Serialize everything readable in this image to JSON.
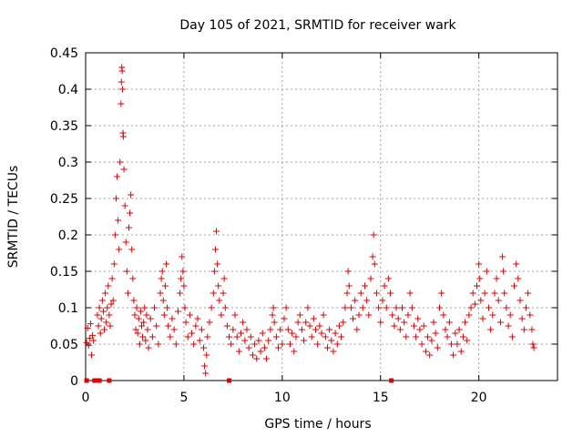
{
  "chart_data": {
    "type": "scatter",
    "title": "Day 105 of 2021, SRMTID for receiver wark",
    "xlabel": "GPS time / hours",
    "ylabel": "SRMTID / TECUs",
    "xlim": [
      0,
      24
    ],
    "ylim": [
      0,
      0.45
    ],
    "xticks": [
      0,
      5,
      10,
      15,
      20
    ],
    "yticks": [
      0,
      0.05,
      0.1,
      0.15,
      0.2,
      0.25,
      0.3,
      0.35,
      0.4,
      0.45
    ],
    "xtick_labels": [
      "0",
      "5",
      "10",
      "15",
      "20"
    ],
    "ytick_labels": [
      "0",
      "0.05",
      "0.1",
      "0.15",
      "0.2",
      "0.25",
      "0.3",
      "0.35",
      "0.4",
      "0.45"
    ],
    "grid": true,
    "marker": "+",
    "color": "#e00000",
    "series": [
      {
        "points": [
          [
            0.05,
            0.052
          ],
          [
            0.1,
            0.072
          ],
          [
            0.15,
            0.048
          ],
          [
            0.2,
            0.058
          ],
          [
            0.25,
            0.078
          ],
          [
            0.3,
            0.035
          ],
          [
            0.35,
            0.062
          ],
          [
            0.4,
            0.055
          ],
          [
            0.6,
            0.09
          ],
          [
            0.65,
            0.075
          ],
          [
            0.7,
            0.1
          ],
          [
            0.75,
            0.065
          ],
          [
            0.8,
            0.085
          ],
          [
            0.85,
            0.11
          ],
          [
            0.9,
            0.095
          ],
          [
            0.95,
            0.07
          ],
          [
            1.0,
            0.12
          ],
          [
            1.05,
            0.08
          ],
          [
            1.1,
            0.1
          ],
          [
            1.15,
            0.13
          ],
          [
            1.2,
            0.09
          ],
          [
            1.25,
            0.075
          ],
          [
            1.3,
            0.105
          ],
          [
            1.35,
            0.14
          ],
          [
            1.4,
            0.11
          ],
          [
            1.45,
            0.16
          ],
          [
            1.5,
            0.2
          ],
          [
            1.55,
            0.25
          ],
          [
            1.6,
            0.28
          ],
          [
            1.65,
            0.22
          ],
          [
            1.7,
            0.18
          ],
          [
            1.75,
            0.3
          ],
          [
            1.8,
            0.38
          ],
          [
            1.82,
            0.41
          ],
          [
            1.84,
            0.43
          ],
          [
            1.86,
            0.425
          ],
          [
            1.88,
            0.4
          ],
          [
            1.9,
            0.34
          ],
          [
            1.92,
            0.335
          ],
          [
            1.95,
            0.29
          ],
          [
            2.0,
            0.24
          ],
          [
            2.05,
            0.19
          ],
          [
            2.1,
            0.15
          ],
          [
            2.15,
            0.12
          ],
          [
            2.2,
            0.21
          ],
          [
            2.25,
            0.23
          ],
          [
            2.3,
            0.255
          ],
          [
            2.35,
            0.18
          ],
          [
            2.4,
            0.14
          ],
          [
            2.45,
            0.11
          ],
          [
            2.5,
            0.09
          ],
          [
            2.55,
            0.07
          ],
          [
            2.6,
            0.1
          ],
          [
            2.65,
            0.065
          ],
          [
            2.7,
            0.085
          ],
          [
            2.75,
            0.05
          ],
          [
            2.8,
            0.095
          ],
          [
            2.85,
            0.075
          ],
          [
            2.9,
            0.06
          ],
          [
            2.95,
            0.08
          ],
          [
            3.0,
            0.1
          ],
          [
            3.05,
            0.055
          ],
          [
            3.1,
            0.09
          ],
          [
            3.15,
            0.07
          ],
          [
            3.2,
            0.045
          ],
          [
            3.3,
            0.085
          ],
          [
            3.4,
            0.06
          ],
          [
            3.5,
            0.1
          ],
          [
            3.6,
            0.075
          ],
          [
            3.7,
            0.05
          ],
          [
            3.8,
            0.12
          ],
          [
            3.85,
            0.14
          ],
          [
            3.9,
            0.15
          ],
          [
            3.95,
            0.11
          ],
          [
            4.0,
            0.09
          ],
          [
            4.05,
            0.13
          ],
          [
            4.1,
            0.16
          ],
          [
            4.15,
            0.1
          ],
          [
            4.2,
            0.075
          ],
          [
            4.3,
            0.06
          ],
          [
            4.4,
            0.085
          ],
          [
            4.5,
            0.07
          ],
          [
            4.6,
            0.05
          ],
          [
            4.7,
            0.095
          ],
          [
            4.8,
            0.12
          ],
          [
            4.85,
            0.14
          ],
          [
            4.9,
            0.17
          ],
          [
            4.95,
            0.15
          ],
          [
            5.0,
            0.13
          ],
          [
            5.05,
            0.1
          ],
          [
            5.1,
            0.08
          ],
          [
            5.2,
            0.06
          ],
          [
            5.3,
            0.09
          ],
          [
            5.4,
            0.065
          ],
          [
            5.5,
            0.05
          ],
          [
            5.6,
            0.075
          ],
          [
            5.7,
            0.085
          ],
          [
            5.8,
            0.055
          ],
          [
            5.9,
            0.07
          ],
          [
            6.0,
            0.045
          ],
          [
            6.05,
            0.02
          ],
          [
            6.1,
            0.01
          ],
          [
            6.15,
            0.035
          ],
          [
            6.2,
            0.06
          ],
          [
            6.3,
            0.08
          ],
          [
            6.4,
            0.1
          ],
          [
            6.5,
            0.12
          ],
          [
            6.55,
            0.15
          ],
          [
            6.6,
            0.18
          ],
          [
            6.65,
            0.205
          ],
          [
            6.7,
            0.16
          ],
          [
            6.75,
            0.13
          ],
          [
            6.8,
            0.11
          ],
          [
            6.9,
            0.09
          ],
          [
            7.0,
            0.12
          ],
          [
            7.05,
            0.14
          ],
          [
            7.1,
            0.1
          ],
          [
            7.2,
            0.075
          ],
          [
            7.3,
            0.06
          ],
          [
            7.4,
            0.05
          ],
          [
            7.5,
            0.07
          ],
          [
            7.6,
            0.09
          ],
          [
            7.7,
            0.06
          ],
          [
            7.8,
            0.04
          ],
          [
            7.9,
            0.065
          ],
          [
            8.0,
            0.08
          ],
          [
            8.1,
            0.055
          ],
          [
            8.2,
            0.07
          ],
          [
            8.3,
            0.045
          ],
          [
            8.4,
            0.06
          ],
          [
            8.5,
            0.035
          ],
          [
            8.6,
            0.05
          ],
          [
            8.7,
            0.03
          ],
          [
            8.8,
            0.055
          ],
          [
            8.9,
            0.04
          ],
          [
            9.0,
            0.065
          ],
          [
            9.1,
            0.045
          ],
          [
            9.2,
            0.03
          ],
          [
            9.3,
            0.055
          ],
          [
            9.4,
            0.07
          ],
          [
            9.5,
            0.09
          ],
          [
            9.55,
            0.1
          ],
          [
            9.6,
            0.08
          ],
          [
            9.7,
            0.06
          ],
          [
            9.8,
            0.045
          ],
          [
            9.9,
            0.07
          ],
          [
            10.0,
            0.05
          ],
          [
            10.1,
            0.085
          ],
          [
            10.2,
            0.1
          ],
          [
            10.3,
            0.07
          ],
          [
            10.4,
            0.05
          ],
          [
            10.5,
            0.065
          ],
          [
            10.6,
            0.04
          ],
          [
            10.7,
            0.06
          ],
          [
            10.8,
            0.08
          ],
          [
            10.9,
            0.09
          ],
          [
            11.0,
            0.07
          ],
          [
            11.1,
            0.055
          ],
          [
            11.2,
            0.08
          ],
          [
            11.3,
            0.1
          ],
          [
            11.4,
            0.075
          ],
          [
            11.5,
            0.06
          ],
          [
            11.6,
            0.085
          ],
          [
            11.7,
            0.07
          ],
          [
            11.8,
            0.05
          ],
          [
            11.9,
            0.075
          ],
          [
            12.0,
            0.065
          ],
          [
            12.1,
            0.09
          ],
          [
            12.2,
            0.06
          ],
          [
            12.3,
            0.045
          ],
          [
            12.4,
            0.07
          ],
          [
            12.5,
            0.055
          ],
          [
            12.6,
            0.04
          ],
          [
            12.7,
            0.065
          ],
          [
            12.8,
            0.05
          ],
          [
            12.9,
            0.075
          ],
          [
            13.0,
            0.06
          ],
          [
            13.1,
            0.08
          ],
          [
            13.2,
            0.1
          ],
          [
            13.3,
            0.12
          ],
          [
            13.35,
            0.15
          ],
          [
            13.4,
            0.13
          ],
          [
            13.5,
            0.1
          ],
          [
            13.6,
            0.085
          ],
          [
            13.7,
            0.11
          ],
          [
            13.8,
            0.07
          ],
          [
            13.9,
            0.09
          ],
          [
            14.0,
            0.12
          ],
          [
            14.1,
            0.1
          ],
          [
            14.2,
            0.13
          ],
          [
            14.3,
            0.11
          ],
          [
            14.4,
            0.09
          ],
          [
            14.5,
            0.14
          ],
          [
            14.6,
            0.17
          ],
          [
            14.65,
            0.2
          ],
          [
            14.7,
            0.16
          ],
          [
            14.8,
            0.12
          ],
          [
            14.9,
            0.1
          ],
          [
            15.0,
            0.08
          ],
          [
            15.1,
            0.11
          ],
          [
            15.2,
            0.13
          ],
          [
            15.3,
            0.1
          ],
          [
            15.4,
            0.14
          ],
          [
            15.5,
            0.12
          ],
          [
            15.6,
            0.09
          ],
          [
            15.7,
            0.075
          ],
          [
            15.8,
            0.1
          ],
          [
            15.9,
            0.085
          ],
          [
            16.0,
            0.07
          ],
          [
            16.1,
            0.1
          ],
          [
            16.2,
            0.08
          ],
          [
            16.3,
            0.06
          ],
          [
            16.4,
            0.09
          ],
          [
            16.5,
            0.12
          ],
          [
            16.6,
            0.1
          ],
          [
            16.7,
            0.075
          ],
          [
            16.8,
            0.06
          ],
          [
            16.9,
            0.085
          ],
          [
            17.0,
            0.07
          ],
          [
            17.1,
            0.05
          ],
          [
            17.2,
            0.075
          ],
          [
            17.3,
            0.04
          ],
          [
            17.4,
            0.06
          ],
          [
            17.5,
            0.035
          ],
          [
            17.6,
            0.055
          ],
          [
            17.7,
            0.08
          ],
          [
            17.8,
            0.065
          ],
          [
            17.9,
            0.045
          ],
          [
            18.0,
            0.1
          ],
          [
            18.1,
            0.12
          ],
          [
            18.2,
            0.09
          ],
          [
            18.3,
            0.07
          ],
          [
            18.4,
            0.06
          ],
          [
            18.5,
            0.08
          ],
          [
            18.6,
            0.05
          ],
          [
            18.7,
            0.035
          ],
          [
            18.8,
            0.065
          ],
          [
            18.9,
            0.05
          ],
          [
            19.0,
            0.07
          ],
          [
            19.1,
            0.04
          ],
          [
            19.2,
            0.06
          ],
          [
            19.3,
            0.08
          ],
          [
            19.4,
            0.055
          ],
          [
            19.5,
            0.09
          ],
          [
            19.6,
            0.1
          ],
          [
            19.7,
            0.12
          ],
          [
            19.8,
            0.105
          ],
          [
            19.9,
            0.13
          ],
          [
            20.0,
            0.16
          ],
          [
            20.05,
            0.14
          ],
          [
            20.1,
            0.11
          ],
          [
            20.2,
            0.085
          ],
          [
            20.3,
            0.12
          ],
          [
            20.4,
            0.15
          ],
          [
            20.5,
            0.1
          ],
          [
            20.6,
            0.07
          ],
          [
            20.7,
            0.09
          ],
          [
            20.8,
            0.12
          ],
          [
            20.9,
            0.14
          ],
          [
            21.0,
            0.11
          ],
          [
            21.1,
            0.08
          ],
          [
            21.2,
            0.17
          ],
          [
            21.25,
            0.15
          ],
          [
            21.3,
            0.12
          ],
          [
            21.4,
            0.1
          ],
          [
            21.5,
            0.075
          ],
          [
            21.6,
            0.09
          ],
          [
            21.7,
            0.06
          ],
          [
            21.8,
            0.13
          ],
          [
            21.9,
            0.16
          ],
          [
            22.0,
            0.14
          ],
          [
            22.1,
            0.11
          ],
          [
            22.2,
            0.085
          ],
          [
            22.3,
            0.07
          ],
          [
            22.4,
            0.1
          ],
          [
            22.5,
            0.12
          ],
          [
            22.6,
            0.09
          ],
          [
            22.7,
            0.07
          ],
          [
            22.75,
            0.05
          ],
          [
            22.8,
            0.045
          ]
        ]
      }
    ],
    "zero_points": [
      0.05,
      0.45,
      0.5,
      0.55,
      0.6,
      0.7,
      1.2,
      7.3,
      15.55
    ]
  }
}
